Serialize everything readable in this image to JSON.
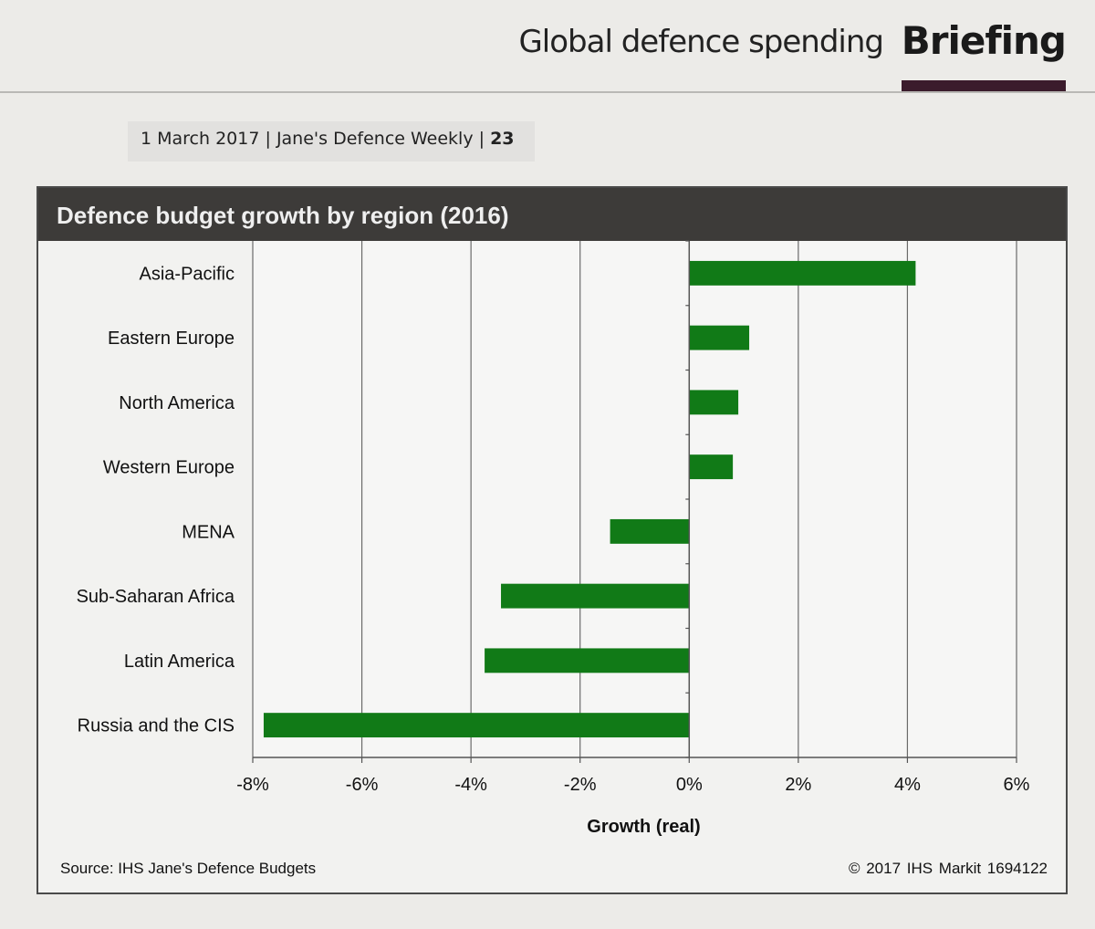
{
  "header": {
    "section": "Global defence spending",
    "tag": "Briefing"
  },
  "issue": {
    "date": "1 March 2017",
    "publication": "Jane's Defence Weekly",
    "page": "23"
  },
  "colors": {
    "bar": "#117a17",
    "title_bg": "#3d3b39",
    "tag_bar": "#3b1b2c"
  },
  "chart_data": {
    "type": "bar",
    "orientation": "horizontal",
    "title": "Defence budget growth by region (2016)",
    "xlabel": "Growth (real)",
    "ylabel": "",
    "categories": [
      "Asia-Pacific",
      "Eastern Europe",
      "North America",
      "Western Europe",
      "MENA",
      "Sub-Saharan Africa",
      "Latin America",
      "Russia and the CIS"
    ],
    "values": [
      4.15,
      1.1,
      0.9,
      0.8,
      -1.45,
      -3.45,
      -3.75,
      -7.8
    ],
    "xlim": [
      -8,
      6
    ],
    "ticks": [
      -8,
      -6,
      -4,
      -2,
      0,
      2,
      4,
      6
    ],
    "tick_labels": [
      "-8%",
      "-6%",
      "-4%",
      "-2%",
      "0%",
      "2%",
      "4%",
      "6%"
    ],
    "grid": "vertical",
    "source": "Source: IHS Jane's Defence Budgets",
    "credit": "© 2017 IHS Markit   1694122"
  }
}
